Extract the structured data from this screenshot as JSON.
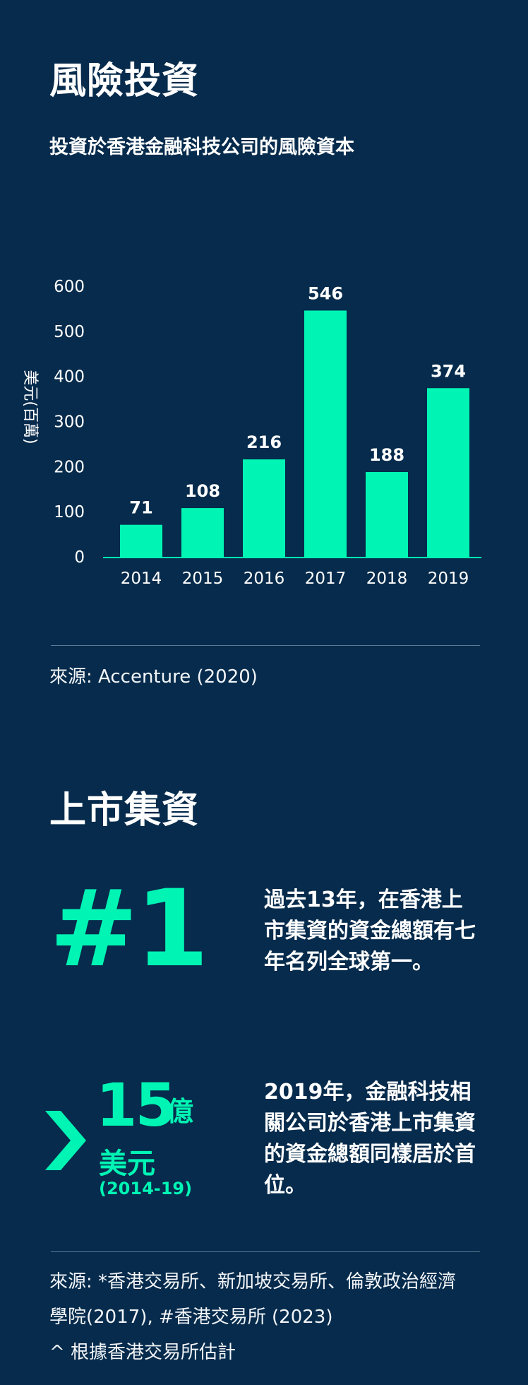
{
  "section1": {
    "title": "風險投資",
    "subtitle": "投資於香港金融科技公司的風險資本",
    "source": "來源: Accenture (2020)"
  },
  "chart_data": {
    "type": "bar",
    "categories": [
      "2014",
      "2015",
      "2016",
      "2017",
      "2018",
      "2019"
    ],
    "values": [
      71,
      108,
      216,
      546,
      188,
      374
    ],
    "ylabel": "美元(百萬)",
    "yticks": [
      0,
      100,
      200,
      300,
      400,
      500,
      600
    ],
    "ylim": [
      0,
      600
    ],
    "grid": false,
    "bar_color": "#00f5b4",
    "axis_color": "#00f5b4"
  },
  "section2": {
    "title": "上市集資",
    "stat1": {
      "big": "#1",
      "text": "過去13年，在香港上市集資的資金總額有七年名列全球第一。"
    },
    "stat2": {
      "arrow_icon": "chevron-right-icon",
      "amount": "15",
      "unit": "億",
      "currency": "美元",
      "period": "(2014-19)",
      "text": "2019年，金融科技相關公司於香港上市集資的資金總額同樣居於首位。"
    },
    "source_line1": "來源: *香港交易所、新加坡交易所、倫敦政治經濟",
    "source_line2": "學院(2017), #香港交易所 (2023)",
    "source_line3": "^ 根據香港交易所估計"
  },
  "colors": {
    "background": "#062b4c",
    "accent": "#00f5b4",
    "text": "#ffffff"
  }
}
